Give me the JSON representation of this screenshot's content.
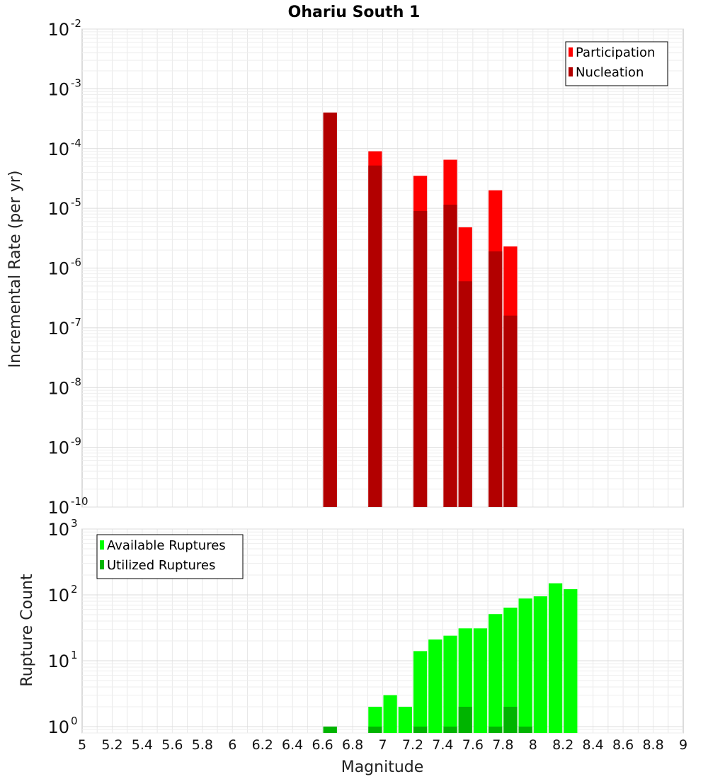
{
  "chart_data": [
    {
      "type": "bar",
      "title": "Ohariu South 1",
      "ylabel": "Incremental Rate (per yr)",
      "xlabel": "",
      "xlim": [
        5,
        9
      ],
      "ylim": [
        1e-10,
        0.01
      ],
      "yscale": "log",
      "ytick_labels": [
        {
          "base": "10",
          "exp": "-2"
        },
        {
          "base": "10",
          "exp": "-3"
        },
        {
          "base": "10",
          "exp": "-4"
        },
        {
          "base": "10",
          "exp": "-5"
        },
        {
          "base": "10",
          "exp": "-6"
        },
        {
          "base": "10",
          "exp": "-7"
        },
        {
          "base": "10",
          "exp": "-8"
        },
        {
          "base": "10",
          "exp": "-9"
        },
        {
          "base": "10",
          "exp": "-10"
        }
      ],
      "grid": true,
      "legend_position": "top-right",
      "legend": [
        "Participation",
        "Nucleation"
      ],
      "series": [
        {
          "name": "Participation",
          "color": "#ff0000",
          "x": [
            6.65,
            6.95,
            7.25,
            7.45,
            7.55,
            7.75,
            7.85
          ],
          "values": [
            0.0004,
            9e-05,
            3.5e-05,
            6.5e-05,
            4.8e-06,
            2e-05,
            2.3e-06
          ]
        },
        {
          "name": "Nucleation",
          "color": "#b20000",
          "x": [
            6.65,
            6.95,
            7.25,
            7.45,
            7.55,
            7.75,
            7.85
          ],
          "values": [
            0.0004,
            5.2e-05,
            9e-06,
            1.15e-05,
            6e-07,
            1.9e-06,
            1.6e-07
          ]
        }
      ]
    },
    {
      "type": "bar",
      "title": "",
      "ylabel": "Rupture Count",
      "xlabel": "Magnitude",
      "xlim": [
        5,
        9
      ],
      "ylim": [
        0.8,
        1000
      ],
      "yscale": "log",
      "ytick_labels": [
        {
          "base": "10",
          "exp": "3"
        },
        {
          "base": "10",
          "exp": "2"
        },
        {
          "base": "10",
          "exp": "1"
        },
        {
          "base": "10",
          "exp": "0"
        }
      ],
      "xtick_labels": [
        "5",
        "5.2",
        "5.4",
        "5.6",
        "5.8",
        "6",
        "6.2",
        "6.4",
        "6.6",
        "6.8",
        "7",
        "7.2",
        "7.4",
        "7.6",
        "7.8",
        "8",
        "8.2",
        "8.4",
        "8.6",
        "8.8",
        "9"
      ],
      "grid": true,
      "legend_position": "top-left",
      "legend": [
        "Available Ruptures",
        "Utilized Ruptures"
      ],
      "series": [
        {
          "name": "Available Ruptures",
          "color": "#00ff00",
          "x": [
            6.65,
            6.95,
            7.05,
            7.15,
            7.25,
            7.35,
            7.45,
            7.55,
            7.65,
            7.75,
            7.85,
            7.95,
            8.05,
            8.15,
            8.25
          ],
          "values": [
            1,
            2,
            3,
            2,
            14,
            21,
            24,
            31,
            31,
            51,
            64,
            88,
            95,
            150,
            122
          ]
        },
        {
          "name": "Utilized Ruptures",
          "color": "#00b400",
          "x": [
            6.65,
            6.95,
            7.25,
            7.45,
            7.55,
            7.75,
            7.85,
            7.95
          ],
          "values": [
            1,
            1,
            1,
            1,
            2,
            1,
            2,
            1
          ]
        }
      ]
    }
  ]
}
